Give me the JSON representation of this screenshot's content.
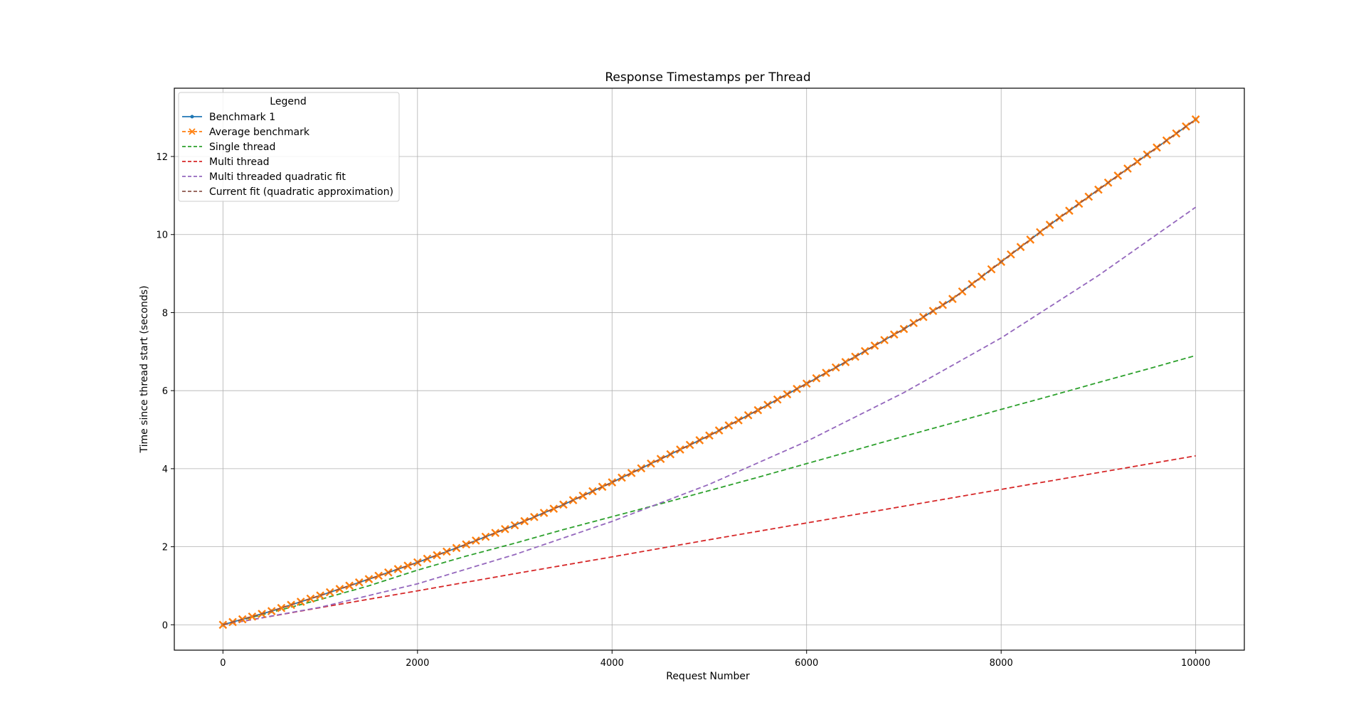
{
  "chart_data": {
    "type": "line",
    "title": "Response Timestamps per Thread",
    "xlabel": "Request Number",
    "ylabel": "Time since thread start (seconds)",
    "xlim": [
      -500,
      10500
    ],
    "ylim": [
      -0.65,
      13.75
    ],
    "xticks": [
      0,
      2000,
      4000,
      6000,
      8000,
      10000
    ],
    "yticks": [
      0,
      2,
      4,
      6,
      8,
      10,
      12
    ],
    "grid": true,
    "legend": {
      "title": "Legend",
      "placement": "top-left"
    },
    "series": [
      {
        "name": "Benchmark 1",
        "color": "#1f77b4",
        "style": "solid",
        "marker": "dot",
        "x": [
          0,
          500,
          1000,
          1500,
          2000,
          2500,
          3000,
          3500,
          4000,
          4500,
          5000,
          5500,
          6000,
          6500,
          7000,
          7500,
          8000,
          8500,
          9000,
          9500,
          10000
        ],
        "y": [
          0.0,
          0.35,
          0.75,
          1.17,
          1.6,
          2.06,
          2.55,
          3.08,
          3.65,
          4.25,
          4.85,
          5.5,
          6.18,
          6.87,
          7.58,
          8.35,
          9.3,
          10.25,
          11.15,
          12.05,
          12.95
        ]
      },
      {
        "name": "Average benchmark",
        "color": "#ff7f0e",
        "style": "dashed",
        "marker": "x",
        "x": [
          0,
          500,
          1000,
          1500,
          2000,
          2500,
          3000,
          3500,
          4000,
          4500,
          5000,
          5500,
          6000,
          6500,
          7000,
          7500,
          8000,
          8500,
          9000,
          9500,
          10000
        ],
        "y": [
          0.0,
          0.35,
          0.75,
          1.17,
          1.6,
          2.06,
          2.55,
          3.08,
          3.65,
          4.25,
          4.85,
          5.5,
          6.18,
          6.87,
          7.58,
          8.35,
          9.3,
          10.25,
          11.15,
          12.05,
          12.95
        ]
      },
      {
        "name": "Single thread",
        "color": "#2ca02c",
        "style": "dashed",
        "marker": "none",
        "x": [
          0,
          500,
          1000,
          1500,
          2000,
          2500,
          3000,
          3500,
          4000,
          4500,
          5000,
          5500,
          6000,
          6500,
          7000,
          7500,
          8000,
          8500,
          9000,
          9500,
          10000
        ],
        "y": [
          0.0,
          0.32,
          0.65,
          1.0,
          1.4,
          1.76,
          2.09,
          2.44,
          2.77,
          3.1,
          3.44,
          3.78,
          4.13,
          4.48,
          4.83,
          5.17,
          5.52,
          5.86,
          6.21,
          6.55,
          6.9
        ]
      },
      {
        "name": "Multi thread",
        "color": "#d62728",
        "style": "dashed",
        "marker": "none",
        "x": [
          0,
          1000,
          2000,
          3000,
          4000,
          5000,
          6000,
          7000,
          8000,
          9000,
          10000
        ],
        "y": [
          0.0,
          0.44,
          0.87,
          1.31,
          1.74,
          2.18,
          2.61,
          3.04,
          3.47,
          3.9,
          4.33
        ]
      },
      {
        "name": "Multi threaded quadratic fit",
        "color": "#9467bd",
        "style": "dashed",
        "marker": "none",
        "x": [
          0,
          1000,
          2000,
          3000,
          4000,
          5000,
          6000,
          7000,
          8000,
          9000,
          10000
        ],
        "y": [
          0.0,
          0.45,
          1.05,
          1.8,
          2.65,
          3.6,
          4.7,
          5.95,
          7.35,
          8.95,
          10.7
        ]
      },
      {
        "name": "Current fit (quadratic approximation)",
        "color": "#8c564b",
        "style": "dashed",
        "marker": "none",
        "x": [
          0,
          500,
          1000,
          1500,
          2000,
          2500,
          3000,
          3500,
          4000,
          4500,
          5000,
          5500,
          6000,
          6500,
          7000,
          7500,
          8000,
          8500,
          9000,
          9500,
          10000
        ],
        "y": [
          0.0,
          0.35,
          0.75,
          1.17,
          1.6,
          2.06,
          2.55,
          3.08,
          3.65,
          4.25,
          4.85,
          5.5,
          6.18,
          6.87,
          7.58,
          8.35,
          9.3,
          10.25,
          11.15,
          12.05,
          12.95
        ]
      }
    ]
  }
}
